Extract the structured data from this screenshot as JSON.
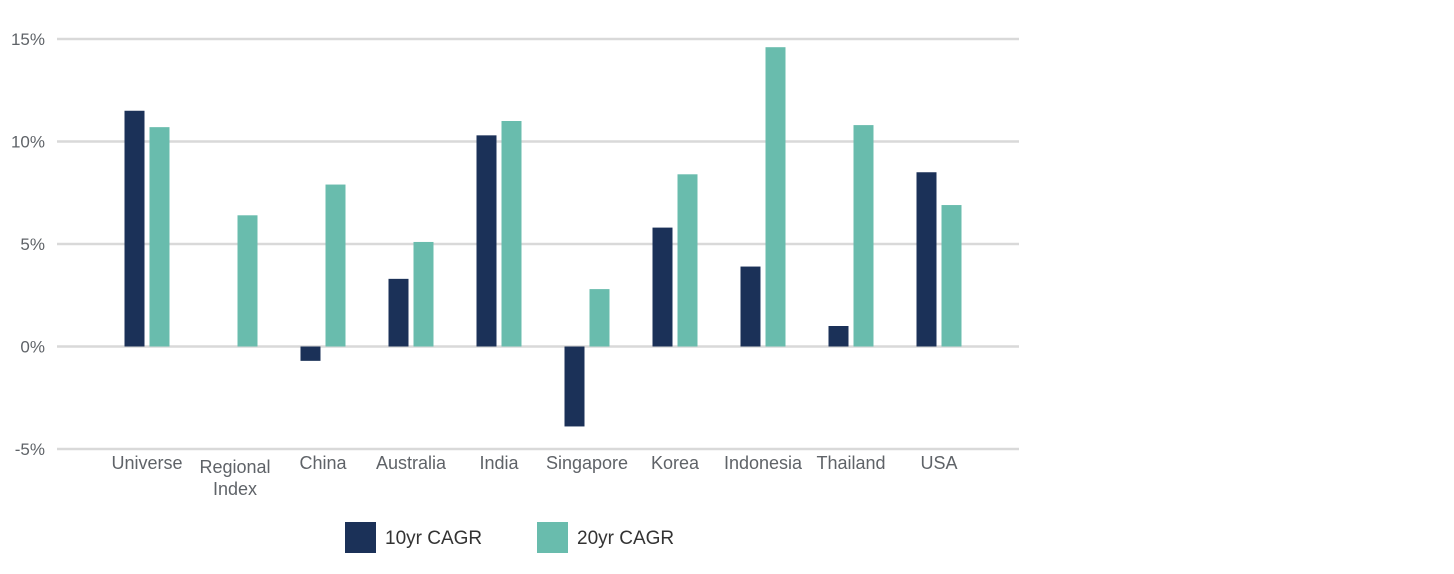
{
  "chart_data": {
    "type": "bar",
    "title": "",
    "xlabel": "",
    "ylabel": "",
    "categories": [
      [
        "Universe"
      ],
      [
        "Regional",
        "Index"
      ],
      [
        "China"
      ],
      [
        "Australia"
      ],
      [
        "India"
      ],
      [
        "Singapore"
      ],
      [
        "Korea"
      ],
      [
        "Indonesia"
      ],
      [
        "Thailand"
      ],
      [
        "USA"
      ]
    ],
    "series": [
      {
        "name": "10yr CAGR",
        "color": "#1b3158",
        "values": [
          11.5,
          null,
          -0.7,
          3.3,
          10.3,
          -3.9,
          5.8,
          3.9,
          1.0,
          8.5
        ]
      },
      {
        "name": "20yr CAGR",
        "color": "#69bcad",
        "values": [
          10.7,
          6.4,
          7.9,
          5.1,
          11.0,
          2.8,
          8.4,
          14.6,
          10.8,
          6.9
        ]
      }
    ],
    "ylim": [
      -5,
      15
    ],
    "yticks": [
      15,
      10,
      5,
      0,
      -5
    ],
    "ytick_labels": [
      "15%",
      "10%",
      "5%",
      "0%",
      "-5%"
    ],
    "grid": true,
    "legend_position": "bottom"
  }
}
